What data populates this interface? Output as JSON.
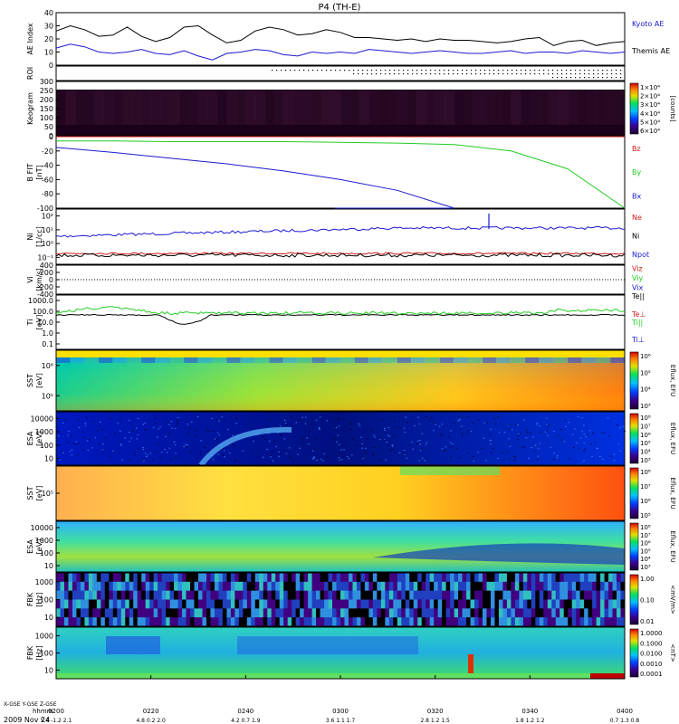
{
  "title": "P4 (TH-E)",
  "date": "2009 Nov 24",
  "colors": {
    "black": "#000000",
    "blue": "#1a1ad0",
    "red": "#d01a1a",
    "green": "#22cc22"
  },
  "chart_data": [
    {
      "id": "ae",
      "type": "line",
      "ylabel": "AE Index",
      "ylim": [
        0,
        40
      ],
      "yticks": [
        "0",
        "10",
        "20",
        "30",
        "40"
      ],
      "series": [
        {
          "name": "Kyoto AE",
          "color": "#1a1ad0",
          "values": [
            13,
            16,
            14,
            10,
            9,
            10,
            12,
            9,
            8,
            11,
            7,
            4,
            9,
            10,
            12,
            11,
            8,
            7,
            10,
            9,
            10,
            9,
            12,
            11,
            10,
            9,
            10,
            11,
            10,
            9,
            9,
            10,
            11,
            9,
            10,
            10,
            9,
            11,
            10,
            9,
            10
          ]
        },
        {
          "name": "Themis AE",
          "color": "#000000",
          "values": [
            26,
            30,
            27,
            22,
            23,
            29,
            22,
            18,
            21,
            29,
            30,
            23,
            17,
            19,
            26,
            29,
            27,
            23,
            24,
            27,
            25,
            21,
            21,
            20,
            19,
            20,
            18,
            20,
            19,
            19,
            18,
            17,
            18,
            20,
            21,
            15,
            18,
            19,
            15,
            17,
            18
          ]
        }
      ],
      "legend": [
        "Kyoto AE",
        "Themis AE"
      ]
    },
    {
      "id": "roi",
      "type": "scatter",
      "ylabel": "ROI"
    },
    {
      "id": "keogram",
      "type": "heatmap",
      "ylabel": "Keogram",
      "ylim": [
        0,
        300
      ],
      "yticks": [
        "0",
        "50",
        "100",
        "150",
        "200",
        "250",
        "300"
      ],
      "colorbar": {
        "label": "[counts]",
        "ticks": [
          "1×10⁴",
          "2×10⁴",
          "3×10⁴",
          "4×10⁴",
          "5×10⁴",
          "6×10⁴"
        ]
      }
    },
    {
      "id": "bfit",
      "type": "line",
      "ylabel": "B FIT",
      "ylabel2": "[nT]",
      "ylim": [
        -100,
        0
      ],
      "yticks": [
        "0",
        "-20",
        "-40",
        "-60",
        "-80",
        "-100"
      ],
      "series": [
        {
          "name": "Bz",
          "color": "#d01a1a",
          "values": [
            0,
            0,
            0,
            0,
            0,
            0,
            0,
            0,
            0,
            0,
            0
          ]
        },
        {
          "name": "By",
          "color": "#22cc22",
          "values": [
            -6,
            -6,
            -7,
            -7,
            -7,
            -8,
            -9,
            -11,
            -20,
            -45,
            -100
          ]
        },
        {
          "name": "Bx",
          "color": "#1a1ad0",
          "values": [
            -15,
            -22,
            -30,
            -38,
            -48,
            -60,
            -75,
            -100,
            null,
            null,
            null
          ]
        }
      ]
    },
    {
      "id": "ni",
      "type": "line",
      "ylabel": "Ni",
      "ylabel2": "[1/cc]",
      "log": true,
      "yticks": [
        "10²",
        "10¹",
        "10⁰",
        "10⁻¹"
      ],
      "series": [
        {
          "name": "Ne",
          "color": "#d01a1a"
        },
        {
          "name": "Ni",
          "color": "#000000"
        },
        {
          "name": "Npot",
          "color": "#1a1ad0"
        }
      ]
    },
    {
      "id": "vi",
      "type": "line",
      "ylabel": "Vi",
      "ylabel2": "[km/s]",
      "ylim": [
        -400,
        400
      ],
      "yticks": [
        "400",
        "200",
        "0",
        "-200",
        "-400"
      ],
      "series": [
        {
          "name": "Viz",
          "color": "#d01a1a"
        },
        {
          "name": "Viy",
          "color": "#22cc22"
        },
        {
          "name": "Vix",
          "color": "#1a1ad0"
        }
      ]
    },
    {
      "id": "ti",
      "type": "line",
      "ylabel": "Ti",
      "ylabel2": "[eV]",
      "log": true,
      "yticks": [
        "1000.0",
        "100.0",
        "10.0",
        "1.0",
        "0.1"
      ],
      "series": [
        {
          "name": "Te||",
          "color": "#000000"
        },
        {
          "name": "Te⊥",
          "color": "#d01a1a"
        },
        {
          "name": "Ti||",
          "color": "#22cc22"
        },
        {
          "name": "Ti⊥",
          "color": "#1a1ad0"
        }
      ]
    },
    {
      "id": "sst_i",
      "type": "heatmap",
      "ylabel": "SST",
      "ylabel2": "[eV]",
      "yticks": [
        "10⁶",
        "10⁵"
      ],
      "colorbar": {
        "label": "Eflux, EFU",
        "ticks": [
          "10⁶",
          "10⁵",
          "10⁴",
          "10³"
        ]
      }
    },
    {
      "id": "esa_i",
      "type": "heatmap",
      "ylabel": "ESA",
      "ylabel2": "[eV]",
      "yticks": [
        "10000",
        "1000",
        "100",
        "10"
      ],
      "colorbar": {
        "label": "Eflux, EFU",
        "ticks": [
          "10⁸",
          "10⁷",
          "10⁶",
          "10⁵",
          "10⁴",
          "10³"
        ]
      }
    },
    {
      "id": "sst_e",
      "type": "heatmap",
      "ylabel": "SST",
      "ylabel2": "[eV]",
      "yticks": [
        "10⁵"
      ],
      "colorbar": {
        "label": "Eflux, EFU",
        "ticks": [
          "10⁸",
          "10⁷",
          "10⁶",
          "10⁵"
        ]
      }
    },
    {
      "id": "esa_e",
      "type": "heatmap",
      "ylabel": "ESA",
      "ylabel2": "[eV]",
      "yticks": [
        "10000",
        "1000",
        "100",
        "10"
      ],
      "colorbar": {
        "label": "Eflux, EFU",
        "ticks": [
          "10⁸",
          "10⁷",
          "10⁶",
          "10⁵",
          "10⁴",
          "10³"
        ]
      }
    },
    {
      "id": "fbk_e",
      "type": "heatmap",
      "ylabel": "FBK",
      "ylabel2": "[Hz]",
      "yticks": [
        "1000",
        "100",
        "10"
      ],
      "colorbar": {
        "label": "<mV/m>",
        "ticks": [
          "1.00",
          "0.10",
          "0.01"
        ]
      }
    },
    {
      "id": "fbk_b",
      "type": "heatmap",
      "ylabel": "FBK",
      "ylabel2": "[Hz]",
      "yticks": [
        "1000",
        "100",
        "10"
      ],
      "colorbar": {
        "label": "<nT>",
        "ticks": [
          "1.0000",
          "0.1000",
          "0.0100",
          "0.0010",
          "0.0001"
        ]
      }
    }
  ],
  "xaxis": {
    "row_labels": [
      "X-GSE",
      "Y-GSE",
      "Z-GSE",
      "hhmm"
    ],
    "columns": [
      {
        "x": "5.4",
        "y": "-1.2",
        "z": "2.1",
        "t": "0200"
      },
      {
        "x": "4.8",
        "y": "0.2",
        "z": "2.0",
        "t": "0220"
      },
      {
        "x": "4.2",
        "y": "0.7",
        "z": "1.9",
        "t": "0240"
      },
      {
        "x": "3.6",
        "y": "1.1",
        "z": "1.7",
        "t": "0300"
      },
      {
        "x": "2.8",
        "y": "1.2",
        "z": "1.5",
        "t": "0320"
      },
      {
        "x": "1.8",
        "y": "1.2",
        "z": "1.2",
        "t": "0340"
      },
      {
        "x": "0.7",
        "y": "1.3",
        "z": "0.8",
        "t": "0400"
      }
    ]
  }
}
